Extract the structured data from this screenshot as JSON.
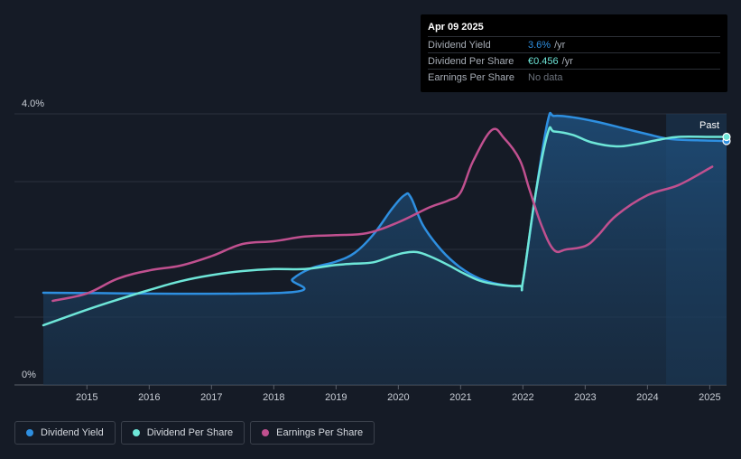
{
  "tooltip": {
    "date": "Apr 09 2025",
    "rows": [
      {
        "label": "Dividend Yield",
        "value": "3.6%",
        "unit": "/yr",
        "color": "#2e8fe0"
      },
      {
        "label": "Dividend Per Share",
        "value": "€0.456",
        "unit": "/yr",
        "color": "#6ee6d8"
      },
      {
        "label": "Earnings Per Share",
        "value": "No data",
        "unit": "",
        "color": "#6b717b"
      }
    ]
  },
  "legend": [
    {
      "label": "Dividend Yield",
      "color": "#2e8fe0"
    },
    {
      "label": "Dividend Per Share",
      "color": "#6ee6d8"
    },
    {
      "label": "Earnings Per Share",
      "color": "#c0508f"
    }
  ],
  "chart_data": {
    "type": "line",
    "y_top_label": "4.0%",
    "y_bottom_label": "0%",
    "ylim": [
      0,
      4.0
    ],
    "xlim": [
      2014.3,
      2025.27
    ],
    "x_ticks": [
      "2015",
      "2016",
      "2017",
      "2018",
      "2019",
      "2020",
      "2021",
      "2022",
      "2023",
      "2024",
      "2025"
    ],
    "past_label": "Past",
    "past_region_start": 2024.3,
    "grid": true,
    "series": [
      {
        "name": "Dividend Yield",
        "color": "#2e8fe0",
        "fill": true,
        "points": [
          [
            2014.3,
            1.36
          ],
          [
            2018.15,
            1.36
          ],
          [
            2018.3,
            1.56
          ],
          [
            2018.6,
            1.72
          ],
          [
            2019.0,
            1.82
          ],
          [
            2019.3,
            1.95
          ],
          [
            2019.6,
            2.22
          ],
          [
            2019.9,
            2.6
          ],
          [
            2020.1,
            2.8
          ],
          [
            2020.2,
            2.77
          ],
          [
            2020.4,
            2.35
          ],
          [
            2020.7,
            1.98
          ],
          [
            2021.0,
            1.73
          ],
          [
            2021.3,
            1.57
          ],
          [
            2021.6,
            1.49
          ],
          [
            2021.95,
            1.46
          ],
          [
            2022.0,
            1.52
          ],
          [
            2022.2,
            2.8
          ],
          [
            2022.4,
            3.9
          ],
          [
            2022.5,
            3.97
          ],
          [
            2022.8,
            3.95
          ],
          [
            2023.2,
            3.88
          ],
          [
            2023.6,
            3.79
          ],
          [
            2024.0,
            3.7
          ],
          [
            2024.35,
            3.63
          ],
          [
            2024.8,
            3.61
          ],
          [
            2025.27,
            3.6
          ]
        ]
      },
      {
        "name": "Dividend Per Share",
        "color": "#6ee6d8",
        "fill": false,
        "points": [
          [
            2014.3,
            0.88
          ],
          [
            2015.0,
            1.11
          ],
          [
            2015.5,
            1.26
          ],
          [
            2016.0,
            1.4
          ],
          [
            2016.5,
            1.53
          ],
          [
            2017.0,
            1.62
          ],
          [
            2017.5,
            1.68
          ],
          [
            2018.0,
            1.71
          ],
          [
            2018.5,
            1.71
          ],
          [
            2019.0,
            1.77
          ],
          [
            2019.3,
            1.79
          ],
          [
            2019.6,
            1.81
          ],
          [
            2019.9,
            1.9
          ],
          [
            2020.1,
            1.95
          ],
          [
            2020.3,
            1.96
          ],
          [
            2020.5,
            1.9
          ],
          [
            2020.8,
            1.77
          ],
          [
            2021.0,
            1.67
          ],
          [
            2021.3,
            1.54
          ],
          [
            2021.6,
            1.48
          ],
          [
            2021.95,
            1.46
          ],
          [
            2022.0,
            1.52
          ],
          [
            2022.2,
            2.8
          ],
          [
            2022.4,
            3.72
          ],
          [
            2022.5,
            3.74
          ],
          [
            2022.8,
            3.69
          ],
          [
            2023.1,
            3.58
          ],
          [
            2023.5,
            3.52
          ],
          [
            2023.8,
            3.55
          ],
          [
            2024.2,
            3.62
          ],
          [
            2024.5,
            3.66
          ],
          [
            2025.0,
            3.66
          ],
          [
            2025.27,
            3.66
          ]
        ]
      },
      {
        "name": "Earnings Per Share",
        "color": "#c0508f",
        "fill": false,
        "points": [
          [
            2014.45,
            1.24
          ],
          [
            2015.0,
            1.35
          ],
          [
            2015.5,
            1.57
          ],
          [
            2016.0,
            1.69
          ],
          [
            2016.5,
            1.76
          ],
          [
            2017.0,
            1.9
          ],
          [
            2017.5,
            2.08
          ],
          [
            2018.0,
            2.12
          ],
          [
            2018.5,
            2.19
          ],
          [
            2019.0,
            2.21
          ],
          [
            2019.5,
            2.24
          ],
          [
            2020.0,
            2.4
          ],
          [
            2020.5,
            2.62
          ],
          [
            2020.8,
            2.72
          ],
          [
            2021.0,
            2.84
          ],
          [
            2021.2,
            3.3
          ],
          [
            2021.5,
            3.76
          ],
          [
            2021.7,
            3.64
          ],
          [
            2021.95,
            3.32
          ],
          [
            2022.1,
            2.9
          ],
          [
            2022.3,
            2.35
          ],
          [
            2022.5,
            1.99
          ],
          [
            2022.7,
            2.0
          ],
          [
            2023.0,
            2.05
          ],
          [
            2023.2,
            2.2
          ],
          [
            2023.5,
            2.5
          ],
          [
            2024.0,
            2.8
          ],
          [
            2024.5,
            2.95
          ],
          [
            2025.0,
            3.2
          ],
          [
            2025.0,
            3.2
          ]
        ]
      }
    ]
  }
}
